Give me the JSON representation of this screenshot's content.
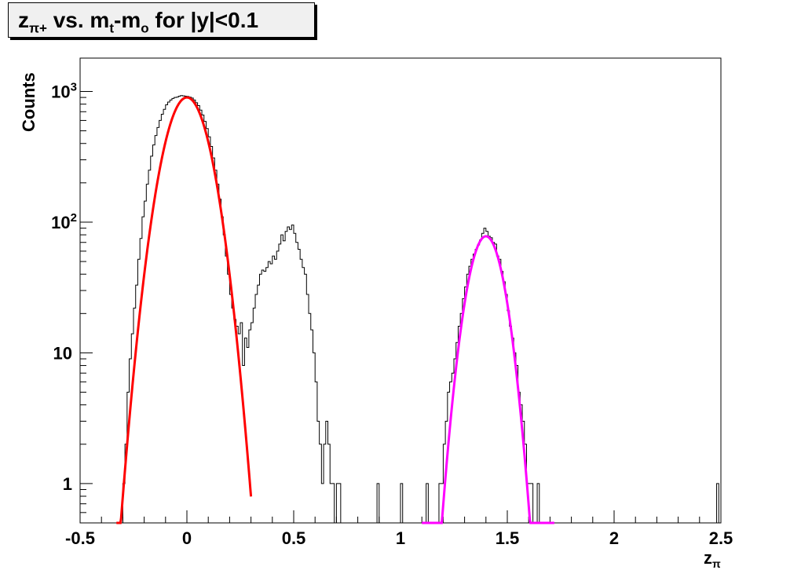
{
  "title": {
    "part1": "z",
    "sub1": "π+",
    "part2": " vs. m",
    "sub2": "t",
    "part3": "-m",
    "sub3": "o",
    "part4": " for |y|<0.1"
  },
  "colors": {
    "histogram": "#000000",
    "fit_left": "#ff0000",
    "fit_right": "#ff00ff",
    "title_bg": "#f0f0f0"
  },
  "chart_data": {
    "type": "histogram",
    "title": "zπ+ vs. mt-mo for |y|<0.1",
    "xlabel": "zπ",
    "ylabel": "Counts",
    "xlim": [
      -0.5,
      2.5
    ],
    "ylim": [
      0.5,
      1800
    ],
    "yscale": "log",
    "x_ticks": [
      "-0.5",
      "0",
      "0.5",
      "1",
      "1.5",
      "2",
      "2.5"
    ],
    "y_ticks": [
      {
        "base": "1",
        "exp": ""
      },
      {
        "base": "10",
        "exp": ""
      },
      {
        "base": "10",
        "exp": "2"
      },
      {
        "base": "10",
        "exp": "3"
      }
    ],
    "grid": false,
    "histogram": {
      "bin_width": 0.01,
      "bins": [
        [
          -0.32,
          0
        ],
        [
          -0.31,
          0
        ],
        [
          -0.3,
          1
        ],
        [
          -0.29,
          2
        ],
        [
          -0.28,
          5
        ],
        [
          -0.27,
          9
        ],
        [
          -0.26,
          14
        ],
        [
          -0.25,
          22
        ],
        [
          -0.24,
          33
        ],
        [
          -0.23,
          52
        ],
        [
          -0.22,
          75
        ],
        [
          -0.21,
          110
        ],
        [
          -0.2,
          145
        ],
        [
          -0.19,
          195
        ],
        [
          -0.18,
          250
        ],
        [
          -0.17,
          320
        ],
        [
          -0.16,
          390
        ],
        [
          -0.15,
          460
        ],
        [
          -0.14,
          530
        ],
        [
          -0.13,
          600
        ],
        [
          -0.12,
          670
        ],
        [
          -0.11,
          730
        ],
        [
          -0.1,
          790
        ],
        [
          -0.09,
          830
        ],
        [
          -0.08,
          860
        ],
        [
          -0.07,
          885
        ],
        [
          -0.06,
          900
        ],
        [
          -0.05,
          905
        ],
        [
          -0.04,
          920
        ],
        [
          -0.03,
          930
        ],
        [
          -0.02,
          925
        ],
        [
          -0.01,
          920
        ],
        [
          0.0,
          915
        ],
        [
          0.01,
          905
        ],
        [
          0.02,
          890
        ],
        [
          0.03,
          860
        ],
        [
          0.04,
          820
        ],
        [
          0.05,
          780
        ],
        [
          0.06,
          720
        ],
        [
          0.07,
          660
        ],
        [
          0.08,
          590
        ],
        [
          0.09,
          520
        ],
        [
          0.1,
          450
        ],
        [
          0.11,
          380
        ],
        [
          0.12,
          310
        ],
        [
          0.13,
          250
        ],
        [
          0.14,
          195
        ],
        [
          0.15,
          150
        ],
        [
          0.16,
          110
        ],
        [
          0.17,
          80
        ],
        [
          0.18,
          55
        ],
        [
          0.19,
          40
        ],
        [
          0.2,
          28
        ],
        [
          0.21,
          22
        ],
        [
          0.22,
          18
        ],
        [
          0.23,
          16
        ],
        [
          0.24,
          14
        ],
        [
          0.25,
          17
        ],
        [
          0.26,
          8
        ],
        [
          0.27,
          13
        ],
        [
          0.28,
          11
        ],
        [
          0.29,
          15
        ],
        [
          0.3,
          17
        ],
        [
          0.31,
          22
        ],
        [
          0.32,
          28
        ],
        [
          0.33,
          33
        ],
        [
          0.34,
          40
        ],
        [
          0.35,
          43
        ],
        [
          0.36,
          42
        ],
        [
          0.37,
          45
        ],
        [
          0.38,
          50
        ],
        [
          0.39,
          48
        ],
        [
          0.4,
          55
        ],
        [
          0.41,
          52
        ],
        [
          0.42,
          60
        ],
        [
          0.43,
          68
        ],
        [
          0.44,
          80
        ],
        [
          0.45,
          72
        ],
        [
          0.46,
          85
        ],
        [
          0.47,
          92
        ],
        [
          0.48,
          88
        ],
        [
          0.49,
          95
        ],
        [
          0.5,
          82
        ],
        [
          0.51,
          70
        ],
        [
          0.52,
          62
        ],
        [
          0.53,
          52
        ],
        [
          0.54,
          45
        ],
        [
          0.55,
          40
        ],
        [
          0.56,
          28
        ],
        [
          0.57,
          20
        ],
        [
          0.58,
          15
        ],
        [
          0.59,
          10
        ],
        [
          0.6,
          6
        ],
        [
          0.61,
          3
        ],
        [
          0.62,
          2
        ],
        [
          0.63,
          1
        ],
        [
          0.64,
          2
        ],
        [
          0.65,
          3
        ],
        [
          0.66,
          2
        ],
        [
          0.67,
          1
        ],
        [
          0.68,
          1
        ],
        [
          0.69,
          0
        ],
        [
          0.7,
          1
        ],
        [
          0.71,
          1
        ],
        [
          0.72,
          0
        ],
        [
          0.73,
          0
        ],
        [
          0.74,
          0
        ],
        [
          0.75,
          0
        ],
        [
          0.76,
          0
        ],
        [
          0.77,
          0
        ],
        [
          0.78,
          0
        ],
        [
          0.79,
          0
        ],
        [
          0.8,
          0
        ],
        [
          0.81,
          0
        ],
        [
          0.82,
          0
        ],
        [
          0.83,
          0
        ],
        [
          0.84,
          0
        ],
        [
          0.85,
          0
        ],
        [
          0.86,
          0
        ],
        [
          0.87,
          0
        ],
        [
          0.88,
          0
        ],
        [
          0.89,
          1
        ],
        [
          0.9,
          0
        ],
        [
          0.91,
          0
        ],
        [
          0.92,
          0
        ],
        [
          0.93,
          0
        ],
        [
          0.94,
          0
        ],
        [
          0.95,
          0
        ],
        [
          0.96,
          0
        ],
        [
          0.97,
          0
        ],
        [
          0.98,
          0
        ],
        [
          0.99,
          0
        ],
        [
          1.0,
          1
        ],
        [
          1.01,
          0
        ],
        [
          1.02,
          0
        ],
        [
          1.03,
          0
        ],
        [
          1.04,
          0
        ],
        [
          1.05,
          0
        ],
        [
          1.06,
          0
        ],
        [
          1.07,
          0
        ],
        [
          1.08,
          0
        ],
        [
          1.09,
          0
        ],
        [
          1.1,
          0
        ],
        [
          1.11,
          0
        ],
        [
          1.12,
          1
        ],
        [
          1.13,
          0
        ],
        [
          1.14,
          0
        ],
        [
          1.15,
          0
        ],
        [
          1.16,
          0
        ],
        [
          1.17,
          0
        ],
        [
          1.18,
          1
        ],
        [
          1.19,
          1
        ],
        [
          1.2,
          2
        ],
        [
          1.21,
          3
        ],
        [
          1.22,
          5
        ],
        [
          1.23,
          6
        ],
        [
          1.24,
          7
        ],
        [
          1.25,
          9
        ],
        [
          1.26,
          12
        ],
        [
          1.27,
          16
        ],
        [
          1.28,
          20
        ],
        [
          1.29,
          26
        ],
        [
          1.3,
          32
        ],
        [
          1.31,
          40
        ],
        [
          1.32,
          46
        ],
        [
          1.33,
          52
        ],
        [
          1.34,
          57
        ],
        [
          1.35,
          62
        ],
        [
          1.36,
          67
        ],
        [
          1.37,
          73
        ],
        [
          1.38,
          82
        ],
        [
          1.39,
          90
        ],
        [
          1.4,
          85
        ],
        [
          1.41,
          78
        ],
        [
          1.42,
          76
        ],
        [
          1.43,
          70
        ],
        [
          1.44,
          68
        ],
        [
          1.45,
          55
        ],
        [
          1.46,
          52
        ],
        [
          1.47,
          42
        ],
        [
          1.48,
          35
        ],
        [
          1.49,
          28
        ],
        [
          1.5,
          21
        ],
        [
          1.51,
          16
        ],
        [
          1.52,
          13
        ],
        [
          1.53,
          10
        ],
        [
          1.54,
          8
        ],
        [
          1.55,
          5
        ],
        [
          1.56,
          4
        ],
        [
          1.57,
          3
        ],
        [
          1.58,
          2
        ],
        [
          1.59,
          1
        ],
        [
          1.6,
          1
        ],
        [
          1.61,
          1
        ],
        [
          1.62,
          0
        ],
        [
          1.63,
          0
        ],
        [
          1.64,
          1
        ],
        [
          1.65,
          0
        ],
        [
          1.66,
          0
        ],
        [
          1.67,
          0
        ],
        [
          1.68,
          0
        ],
        [
          1.69,
          0
        ],
        [
          2.48,
          1
        ]
      ]
    },
    "fits": [
      {
        "name": "gaus-left",
        "color": "#ff0000",
        "amplitude": 900,
        "mean": 0.0,
        "sigma": 0.08,
        "range": [
          -0.33,
          0.3
        ]
      },
      {
        "name": "gaus-right",
        "color": "#ff00ff",
        "amplitude": 78,
        "mean": 1.4,
        "sigma": 0.065,
        "range": [
          1.1,
          1.72
        ]
      }
    ]
  }
}
